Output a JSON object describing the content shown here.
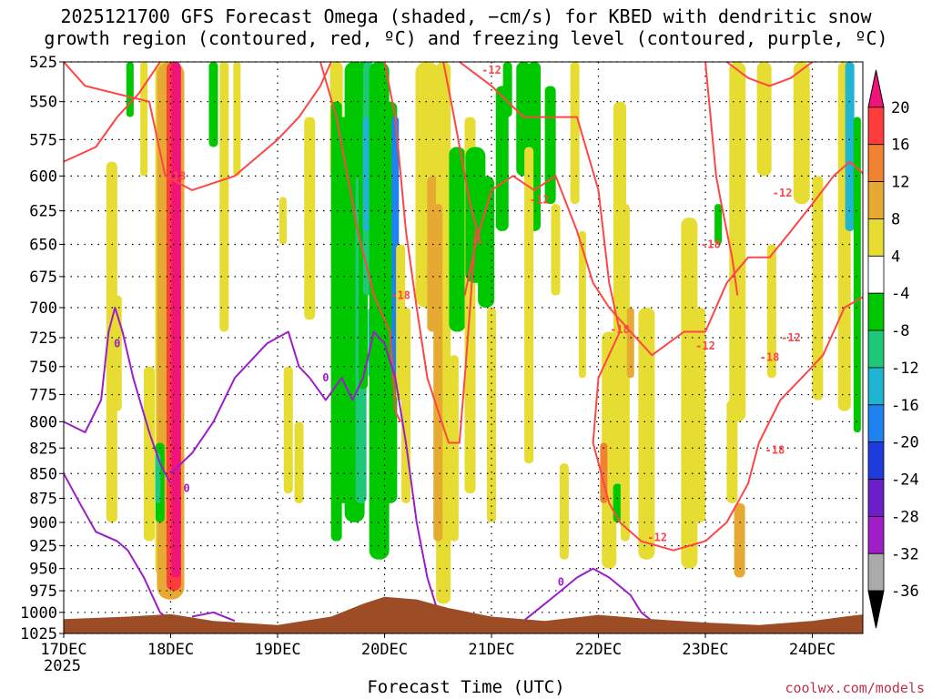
{
  "title_line1": "2025121700 GFS Forecast Omega (shaded, −cm/s) for KBED with dendritic snow",
  "title_line2": "growth region (contoured, red, ºC) and freezing level (contoured, purple, ºC)",
  "xlabel": "Forecast Time (UTC)",
  "year_label": "2025",
  "credit": "coolwx.com/models",
  "chart_data": {
    "type": "heatmap",
    "x_ticks": [
      "17DEC",
      "18DEC",
      "19DEC",
      "20DEC",
      "21DEC",
      "22DEC",
      "23DEC",
      "24DEC"
    ],
    "y_ticks": [
      525,
      550,
      575,
      600,
      625,
      650,
      675,
      700,
      725,
      750,
      775,
      800,
      825,
      850,
      875,
      900,
      925,
      950,
      975,
      1000,
      1025
    ],
    "ylim": [
      525,
      1025
    ],
    "y_axis": "pressure hPa, inverted",
    "grid": true,
    "colorbar": {
      "labels": [
        "20",
        "16",
        "12",
        "8",
        "4",
        "-4",
        "-8",
        "-12",
        "-16",
        "-20",
        "-24",
        "-28",
        "-32",
        "-36"
      ],
      "colors": [
        "#f0147a",
        "#ff3c3c",
        "#f08232",
        "#e6aa32",
        "#e6dc32",
        "#ffffff",
        "#00c800",
        "#1ec878",
        "#1eb4d2",
        "#1e82f0",
        "#1e3cdc",
        "#6e1ec8",
        "#a01ec8",
        "#aaaaaa",
        "#000000"
      ]
    },
    "contour_labels": {
      "red": [
        "-18",
        "-12",
        "-12",
        "-18",
        "-18",
        "-12",
        "-18",
        "-18",
        "-12",
        "-12",
        "-12",
        "-18"
      ],
      "purple": [
        "0",
        "0",
        "0",
        "0"
      ]
    },
    "colors": {
      "dgz": "#ff4646",
      "freezing": "#9b1ec8",
      "terrain": "#9c4d26"
    }
  }
}
